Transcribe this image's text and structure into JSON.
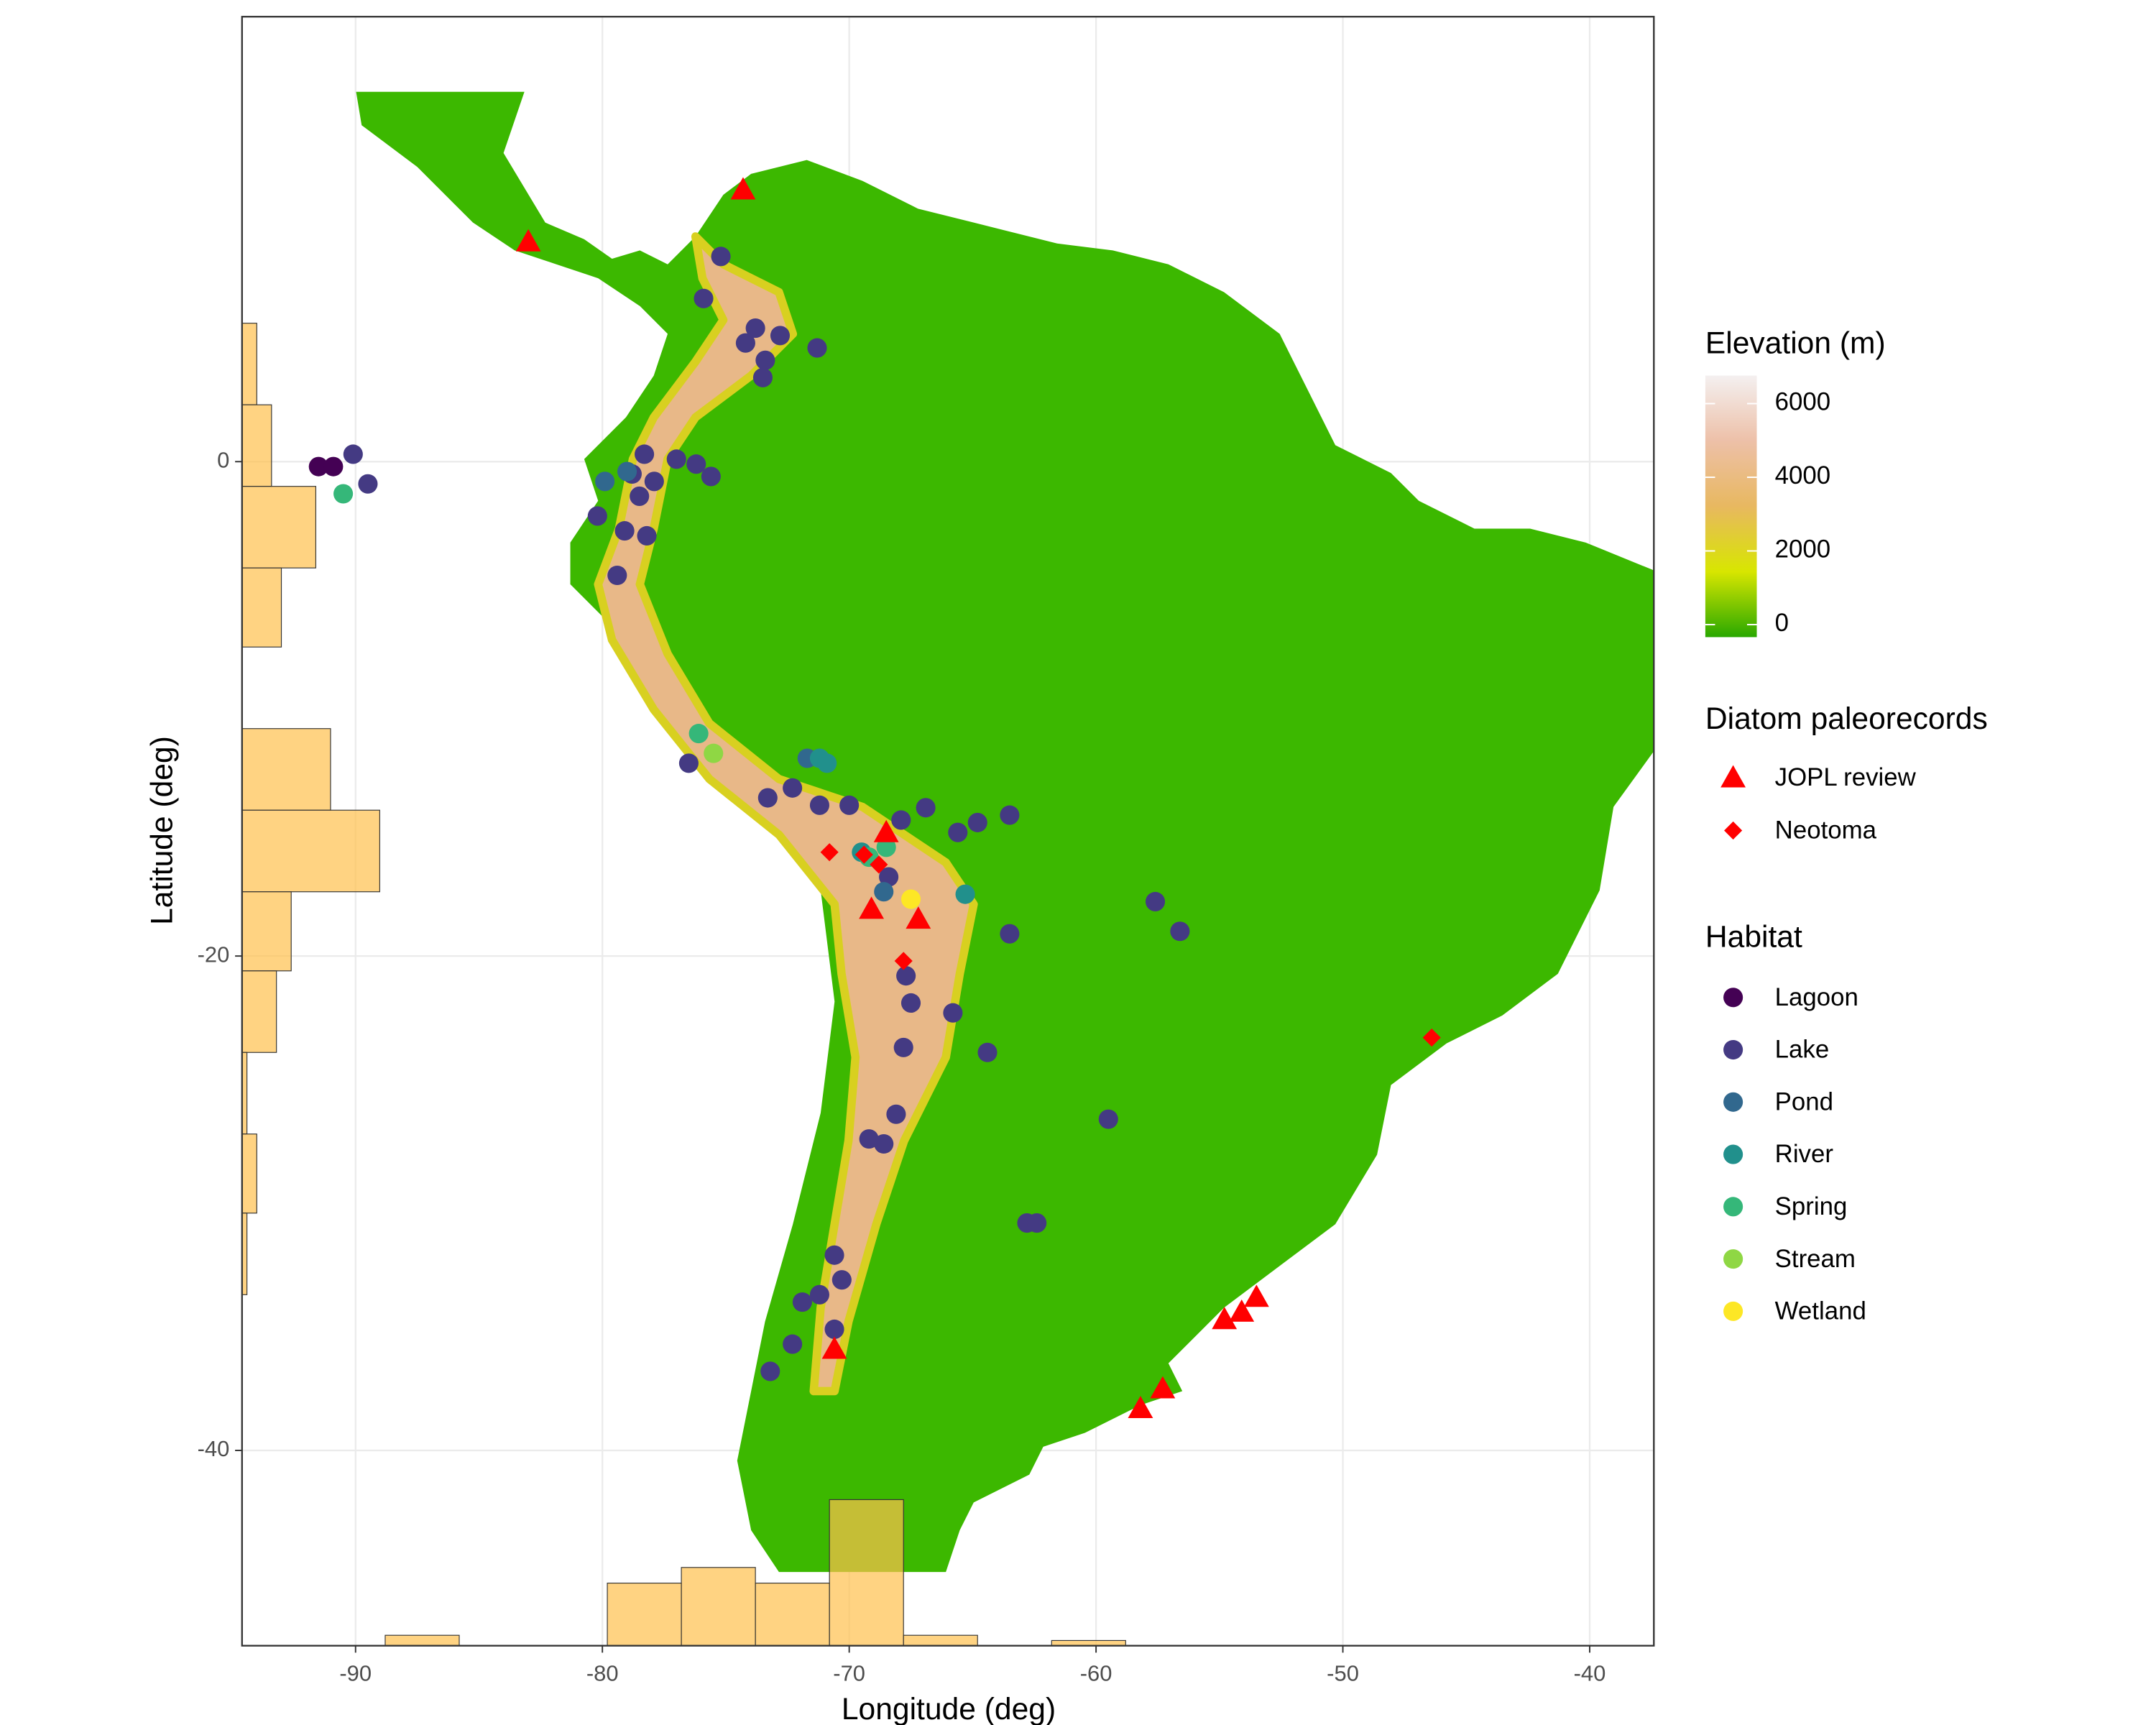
{
  "chart_data": {
    "type": "scatter",
    "xlabel": "Longitude (deg)",
    "ylabel": "Latitude (deg)",
    "xlim": [
      -94.6,
      -37.4
    ],
    "ylim": [
      -47.9,
      18.0
    ],
    "xticks": [
      -90,
      -80,
      -70,
      -60,
      -50,
      -40
    ],
    "yticks": [
      -40,
      -20,
      0
    ],
    "grid": true,
    "elevation": {
      "title": "Elevation (m)",
      "lim": [
        -340,
        6760
      ],
      "ticks": [
        0,
        2000,
        4000,
        6000
      ],
      "colors": [
        "#29a800",
        "#d8e600",
        "#e8b860",
        "#edc0a8",
        "#f4f0f0"
      ]
    },
    "records": {
      "title": "Diatom paleorecords",
      "series": [
        {
          "name": "JOPL review",
          "marker": "triangle",
          "color": "#ff0000",
          "x": [
            -74.3,
            -83.0,
            -68.5,
            -69.1,
            -67.2,
            -70.6,
            -58.2,
            -57.3,
            -54.8,
            -54.1,
            -53.5
          ],
          "y": [
            11.0,
            8.9,
            -15.0,
            -18.1,
            -18.5,
            -35.9,
            -38.3,
            -37.5,
            -34.7,
            -34.4,
            -33.8
          ]
        },
        {
          "name": "Neotoma",
          "marker": "diamond",
          "color": "#ff0000",
          "x": [
            -70.8,
            -69.4,
            -68.8,
            -67.8,
            -46.4
          ],
          "y": [
            -15.8,
            -15.9,
            -16.3,
            -20.2,
            -23.3
          ]
        }
      ]
    },
    "habitat": {
      "title": "Habitat",
      "series": [
        {
          "name": "Lagoon",
          "color": "#440154",
          "x": [
            -91.5,
            -90.9
          ],
          "y": [
            -0.2,
            -0.2
          ]
        },
        {
          "name": "Lake",
          "color": "#443a83",
          "x": [
            -75.2,
            -75.9,
            -74.2,
            -73.8,
            -72.8,
            -71.3,
            -73.4,
            -73.5,
            -90.1,
            -89.5,
            -78.3,
            -77.0,
            -76.2,
            -75.6,
            -78.8,
            -78.5,
            -77.9,
            -79.1,
            -78.2,
            -80.2,
            -79.4,
            -76.5,
            -73.3,
            -72.3,
            -71.2,
            -70.0,
            -67.9,
            -66.9,
            -65.6,
            -64.8,
            -63.5,
            -57.6,
            -56.6,
            -63.5,
            -68.4,
            -67.7,
            -67.5,
            -65.8,
            -67.8,
            -64.4,
            -68.1,
            -69.2,
            -68.6,
            -59.5,
            -62.8,
            -62.4,
            -70.6,
            -70.3,
            -71.2,
            -71.9,
            -72.3,
            -73.2,
            -70.6
          ],
          "y": [
            8.3,
            6.6,
            4.8,
            5.4,
            5.1,
            4.6,
            4.1,
            3.4,
            0.3,
            -0.9,
            0.3,
            0.1,
            -0.1,
            -0.6,
            -0.5,
            -1.4,
            -0.8,
            -2.8,
            -3.0,
            -2.2,
            -4.6,
            -12.2,
            -13.6,
            -13.2,
            -13.9,
            -13.9,
            -14.5,
            -14.0,
            -15.0,
            -14.6,
            -14.3,
            -17.8,
            -19.0,
            -19.1,
            -16.8,
            -20.8,
            -21.9,
            -22.3,
            -23.7,
            -23.9,
            -26.4,
            -27.4,
            -27.6,
            -26.6,
            -30.8,
            -30.8,
            -32.1,
            -33.1,
            -33.7,
            -34.0,
            -35.7,
            -36.8,
            -35.1
          ]
        },
        {
          "name": "Pond",
          "color": "#31688e",
          "x": [
            -79.9,
            -79.0,
            -71.7,
            -68.6
          ],
          "y": [
            -0.8,
            -0.4,
            -12.0,
            -17.4
          ]
        },
        {
          "name": "River",
          "color": "#21908c",
          "x": [
            -71.2,
            -70.9,
            -69.5,
            -65.3
          ],
          "y": [
            -12.0,
            -12.2,
            -15.8,
            -17.5
          ]
        },
        {
          "name": "Spring",
          "color": "#35b779",
          "x": [
            -90.5,
            -76.1,
            -68.5,
            -69.2
          ],
          "y": [
            -1.3,
            -11.0,
            -15.6,
            -16.0
          ]
        },
        {
          "name": "Stream",
          "color": "#8fd744",
          "x": [
            -75.5
          ],
          "y": [
            -11.8
          ]
        },
        {
          "name": "Wetland",
          "color": "#fde725",
          "x": [
            -67.5
          ],
          "y": [
            -17.7
          ]
        }
      ]
    },
    "lon_hist": {
      "color": "#ffc04d",
      "bins": [
        -88.8,
        -85.8,
        -82.8,
        -79.8,
        -76.8,
        -73.8,
        -70.8,
        -67.8,
        -64.8,
        -61.8,
        -58.8
      ],
      "counts": [
        2,
        0,
        0,
        12,
        15,
        12,
        28,
        2,
        0,
        1
      ]
    },
    "lat_hist": {
      "color": "#ffc04d",
      "bins": [
        5.6,
        2.3,
        -1.0,
        -4.3,
        -7.5,
        -10.8,
        -14.1,
        -17.4,
        -20.6,
        -23.9,
        -27.2,
        -30.4,
        -33.7
      ],
      "counts": [
        3,
        6,
        15,
        8,
        0,
        18,
        28,
        10,
        7,
        1,
        3,
        1
      ]
    }
  }
}
